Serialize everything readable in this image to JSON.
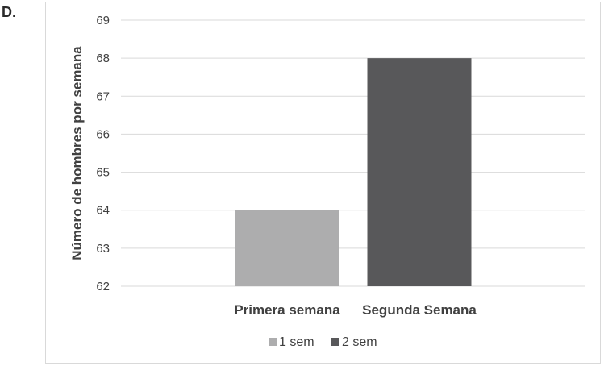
{
  "panel_label": "D.",
  "chart_data": {
    "type": "bar",
    "categories": [
      "Primera semana",
      "Segunda Semana"
    ],
    "series": [
      {
        "name": "1 sem",
        "color": "#adadae",
        "values": [
          64,
          null
        ]
      },
      {
        "name": "2 sem",
        "color": "#58585a",
        "values": [
          null,
          68
        ]
      }
    ],
    "title": "",
    "xlabel": "",
    "ylabel": "Número de hombres por semana",
    "ylim": [
      62,
      69
    ],
    "yticks": [
      62,
      63,
      64,
      65,
      66,
      67,
      68,
      69
    ],
    "grid": true,
    "legend_position": "bottom"
  }
}
